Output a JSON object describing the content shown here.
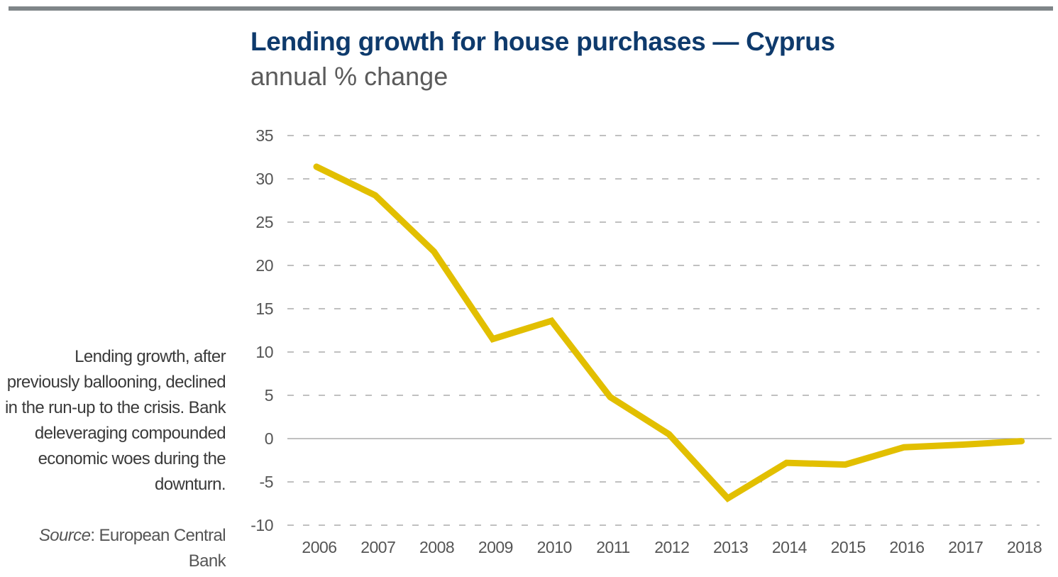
{
  "chart_data": {
    "type": "line",
    "title": "Lending growth for house purchases — Cyprus",
    "subtitle": "annual % change",
    "xlabel": "",
    "ylabel": "",
    "categories": [
      "2006",
      "2007",
      "2008",
      "2009",
      "2010",
      "2011",
      "2012",
      "2013",
      "2014",
      "2015",
      "2016",
      "2017",
      "2018"
    ],
    "series": [
      {
        "name": "Cyprus",
        "color": "#e2bf00",
        "values": [
          31.4,
          28.1,
          21.6,
          11.5,
          13.6,
          4.8,
          0.5,
          -6.9,
          -2.8,
          -3.0,
          -1.0,
          -0.7,
          -0.3
        ]
      }
    ],
    "ylim": [
      -10,
      35
    ],
    "yticks": [
      35,
      30,
      25,
      20,
      15,
      10,
      5,
      0,
      -5,
      -10
    ],
    "grid": "horizontal-dashed"
  },
  "annotation": "Lending growth, after previously ballooning, declined in the run-up to the crisis. Bank deleveraging compounded economic woes during the downturn.",
  "source": {
    "label": "Source",
    "text": ": European Central Bank"
  }
}
